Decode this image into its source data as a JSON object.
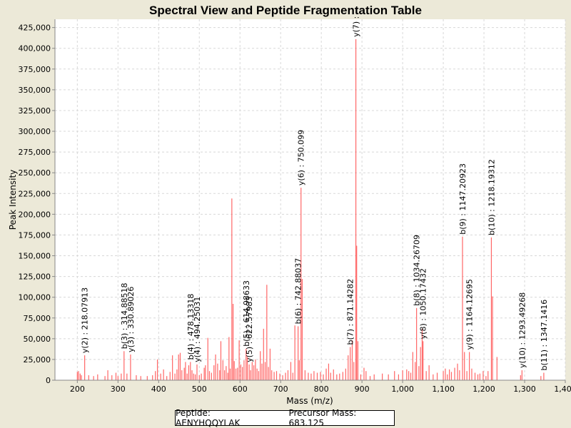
{
  "chart_data": {
    "type": "bar",
    "title": "Spectral View and Peptide Fragmentation Table",
    "xlabel": "Mass (m/z)",
    "ylabel": "Peak Intensity",
    "xlim": [
      145,
      1400
    ],
    "ylim": [
      0,
      435000
    ],
    "xticks": [
      200,
      300,
      400,
      500,
      600,
      700,
      800,
      900,
      1000,
      1100,
      1200,
      1300,
      1400
    ],
    "xtick_labels": [
      "200",
      "300",
      "400",
      "500",
      "600",
      "700",
      "800",
      "900",
      "1,000",
      "1,100",
      "1,200",
      "1,300",
      "1,400"
    ],
    "yticks": [
      0,
      25000,
      50000,
      75000,
      100000,
      125000,
      150000,
      175000,
      200000,
      225000,
      250000,
      275000,
      300000,
      325000,
      350000,
      375000,
      400000,
      425000
    ],
    "ytick_labels": [
      "0",
      "25,000",
      "50,000",
      "75,000",
      "100,000",
      "125,000",
      "150,000",
      "175,000",
      "200,000",
      "225,000",
      "250,000",
      "275,000",
      "300,000",
      "325,000",
      "350,000",
      "375,000",
      "400,000",
      "425,000"
    ],
    "grid": true,
    "peak_color": "#ff6666",
    "peaks": [
      [
        200,
        10000
      ],
      [
        203,
        11000
      ],
      [
        207,
        8000
      ],
      [
        210,
        6000
      ],
      [
        218.07913,
        30000
      ],
      [
        228,
        6000
      ],
      [
        240,
        5000
      ],
      [
        250,
        7000
      ],
      [
        268,
        5000
      ],
      [
        275,
        12000
      ],
      [
        285,
        6000
      ],
      [
        295,
        9000
      ],
      [
        300,
        5000
      ],
      [
        308,
        8000
      ],
      [
        314.88518,
        35000
      ],
      [
        322,
        8000
      ],
      [
        330.89026,
        31000
      ],
      [
        345,
        6000
      ],
      [
        356,
        5000
      ],
      [
        372,
        5000
      ],
      [
        385,
        6000
      ],
      [
        392,
        11000
      ],
      [
        397,
        25000
      ],
      [
        405,
        8000
      ],
      [
        412,
        13000
      ],
      [
        420,
        5000
      ],
      [
        428,
        10000
      ],
      [
        434,
        30000
      ],
      [
        440,
        8000
      ],
      [
        445,
        13000
      ],
      [
        449,
        31000
      ],
      [
        453,
        33000
      ],
      [
        457,
        12000
      ],
      [
        463,
        15000
      ],
      [
        466,
        22000
      ],
      [
        470,
        8000
      ],
      [
        474,
        18000
      ],
      [
        478.13318,
        22000
      ],
      [
        482,
        12000
      ],
      [
        486,
        8000
      ],
      [
        490,
        7000
      ],
      [
        494.25031,
        19000
      ],
      [
        500,
        6000
      ],
      [
        505,
        8000
      ],
      [
        512,
        15000
      ],
      [
        515,
        18000
      ],
      [
        521,
        51000
      ],
      [
        525,
        11000
      ],
      [
        530,
        9000
      ],
      [
        536,
        18000
      ],
      [
        540,
        31000
      ],
      [
        545,
        20000
      ],
      [
        550,
        12000
      ],
      [
        553,
        47000
      ],
      [
        558,
        24000
      ],
      [
        562,
        12000
      ],
      [
        566,
        17000
      ],
      [
        570,
        9000
      ],
      [
        573,
        52000
      ],
      [
        576,
        14000
      ],
      [
        580,
        219000
      ],
      [
        583,
        92000
      ],
      [
        586,
        23000
      ],
      [
        590,
        14000
      ],
      [
        594,
        15000
      ],
      [
        598,
        48000
      ],
      [
        602,
        19000
      ],
      [
        606,
        16000
      ],
      [
        610,
        24000
      ],
      [
        614.98633,
        38000
      ],
      [
        618,
        28000
      ],
      [
        622.57983,
        19000
      ],
      [
        626,
        12000
      ],
      [
        630,
        22000
      ],
      [
        634,
        18000
      ],
      [
        638,
        25000
      ],
      [
        642,
        14000
      ],
      [
        646,
        11000
      ],
      [
        650,
        35000
      ],
      [
        654,
        20000
      ],
      [
        658,
        62000
      ],
      [
        662,
        22000
      ],
      [
        666,
        115000
      ],
      [
        670,
        16000
      ],
      [
        674,
        38000
      ],
      [
        678,
        12000
      ],
      [
        684,
        10000
      ],
      [
        690,
        11000
      ],
      [
        698,
        8000
      ],
      [
        705,
        6000
      ],
      [
        712,
        9000
      ],
      [
        718,
        12000
      ],
      [
        725,
        22000
      ],
      [
        730,
        9000
      ],
      [
        735,
        66000
      ],
      [
        742.88037,
        65000
      ],
      [
        746,
        24000
      ],
      [
        750.099,
        232000
      ],
      [
        753,
        122000
      ],
      [
        760,
        12000
      ],
      [
        768,
        9000
      ],
      [
        775,
        8000
      ],
      [
        782,
        11000
      ],
      [
        790,
        9000
      ],
      [
        798,
        10000
      ],
      [
        805,
        7000
      ],
      [
        812,
        14000
      ],
      [
        818,
        20000
      ],
      [
        823,
        9000
      ],
      [
        830,
        13000
      ],
      [
        838,
        7000
      ],
      [
        845,
        8000
      ],
      [
        853,
        10000
      ],
      [
        860,
        14000
      ],
      [
        866,
        30000
      ],
      [
        871.14282,
        40000
      ],
      [
        876,
        48000
      ],
      [
        880,
        22000
      ],
      [
        885,
        411000
      ],
      [
        887,
        162000
      ],
      [
        890,
        47000
      ],
      [
        897,
        7000
      ],
      [
        905,
        15000
      ],
      [
        910,
        11000
      ],
      [
        920,
        5000
      ],
      [
        930,
        7000
      ],
      [
        950,
        8000
      ],
      [
        965,
        7000
      ],
      [
        980,
        11000
      ],
      [
        990,
        7000
      ],
      [
        1000,
        12000
      ],
      [
        1010,
        13000
      ],
      [
        1015,
        11000
      ],
      [
        1020,
        9000
      ],
      [
        1025,
        34000
      ],
      [
        1031,
        22000
      ],
      [
        1034.26709,
        87000
      ],
      [
        1040,
        17000
      ],
      [
        1044,
        40000
      ],
      [
        1048,
        62000
      ],
      [
        1050.17432,
        47000
      ],
      [
        1058,
        11000
      ],
      [
        1065,
        18000
      ],
      [
        1075,
        7000
      ],
      [
        1085,
        9000
      ],
      [
        1100,
        11000
      ],
      [
        1105,
        14000
      ],
      [
        1110,
        7000
      ],
      [
        1115,
        13000
      ],
      [
        1120,
        10000
      ],
      [
        1128,
        15000
      ],
      [
        1135,
        20000
      ],
      [
        1140,
        12000
      ],
      [
        1147.20923,
        173000
      ],
      [
        1152,
        34000
      ],
      [
        1158,
        11000
      ],
      [
        1164.12695,
        34000
      ],
      [
        1170,
        14000
      ],
      [
        1178,
        9000
      ],
      [
        1185,
        7000
      ],
      [
        1190,
        8000
      ],
      [
        1198,
        11000
      ],
      [
        1205,
        5000
      ],
      [
        1210,
        11000
      ],
      [
        1218.19312,
        172000
      ],
      [
        1221,
        101000
      ],
      [
        1232,
        28000
      ],
      [
        1290,
        6000
      ],
      [
        1293.49268,
        12000
      ],
      [
        1340,
        5000
      ],
      [
        1347.1416,
        9000
      ]
    ],
    "annotations": [
      {
        "label": "y(2) : 218.07913",
        "mz": 218.07913,
        "intensity": 30000
      },
      {
        "label": "b(3) : 314.88518",
        "mz": 314.88518,
        "intensity": 35000
      },
      {
        "label": "y(3) : 330.89026",
        "mz": 330.89026,
        "intensity": 31000
      },
      {
        "label": "b(4) : 478.13318",
        "mz": 478.13318,
        "intensity": 22000
      },
      {
        "label": "y(4) : 494.25031",
        "mz": 494.25031,
        "intensity": 19000
      },
      {
        "label": "b(5) : 614.98633",
        "mz": 614.98633,
        "intensity": 38000
      },
      {
        "label": "y(5) : 622.57983",
        "mz": 622.57983,
        "intensity": 19000
      },
      {
        "label": "b(6) : 742.88037",
        "mz": 742.88037,
        "intensity": 65000
      },
      {
        "label": "y(6) : 750.099",
        "mz": 750.099,
        "intensity": 232000
      },
      {
        "label": "b(7) : 871.14282",
        "mz": 871.14282,
        "intensity": 40000
      },
      {
        "label": "y(7) :",
        "mz": 885,
        "intensity": 411000
      },
      {
        "label": "b(8) : 1034.26709",
        "mz": 1034.26709,
        "intensity": 87000
      },
      {
        "label": "y(8) : 1050.17432",
        "mz": 1050.17432,
        "intensity": 47000
      },
      {
        "label": "b(9) : 1147.20923",
        "mz": 1147.20923,
        "intensity": 173000
      },
      {
        "label": "y(9) : 1164.12695",
        "mz": 1164.12695,
        "intensity": 34000
      },
      {
        "label": "b(10) : 1218.19312",
        "mz": 1218.19312,
        "intensity": 172000
      },
      {
        "label": "y(10) : 1293.49268",
        "mz": 1293.49268,
        "intensity": 12000
      },
      {
        "label": "b(11) : 1347.1416",
        "mz": 1347.1416,
        "intensity": 9000
      }
    ]
  },
  "legend": {
    "peptide": "Peptide: AENYHQQYLAK",
    "precursor": "Precursor Mass: 683.125"
  }
}
